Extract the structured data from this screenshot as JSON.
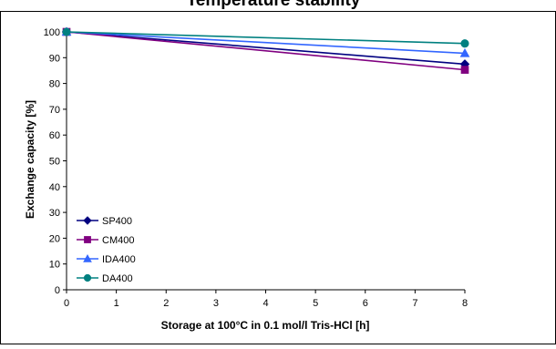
{
  "chart_data": {
    "type": "line",
    "title": "Temperature stability",
    "xlabel": "Storage at 100°C in 0.1 mol/l Tris-HCl [h]",
    "ylabel": "Exchange capacity [%]",
    "xlim": [
      0,
      8
    ],
    "ylim": [
      0,
      100
    ],
    "xticks": [
      0,
      1,
      2,
      3,
      4,
      5,
      6,
      7,
      8
    ],
    "yticks": [
      0,
      10,
      20,
      30,
      40,
      50,
      60,
      70,
      80,
      90,
      100
    ],
    "grid": false,
    "legend_position": "bottom-left",
    "series": [
      {
        "name": "SP400",
        "color": "#000080",
        "marker": "diamond",
        "x": [
          0,
          8
        ],
        "y": [
          100,
          87.5
        ]
      },
      {
        "name": "CM400",
        "color": "#800080",
        "marker": "square",
        "x": [
          0,
          8
        ],
        "y": [
          100,
          85.3
        ]
      },
      {
        "name": "IDA400",
        "color": "#3366ff",
        "marker": "triangle",
        "x": [
          0,
          8
        ],
        "y": [
          100,
          91.7
        ]
      },
      {
        "name": "DA400",
        "color": "#008080",
        "marker": "circle",
        "x": [
          0,
          8
        ],
        "y": [
          100,
          95.5
        ]
      }
    ]
  }
}
